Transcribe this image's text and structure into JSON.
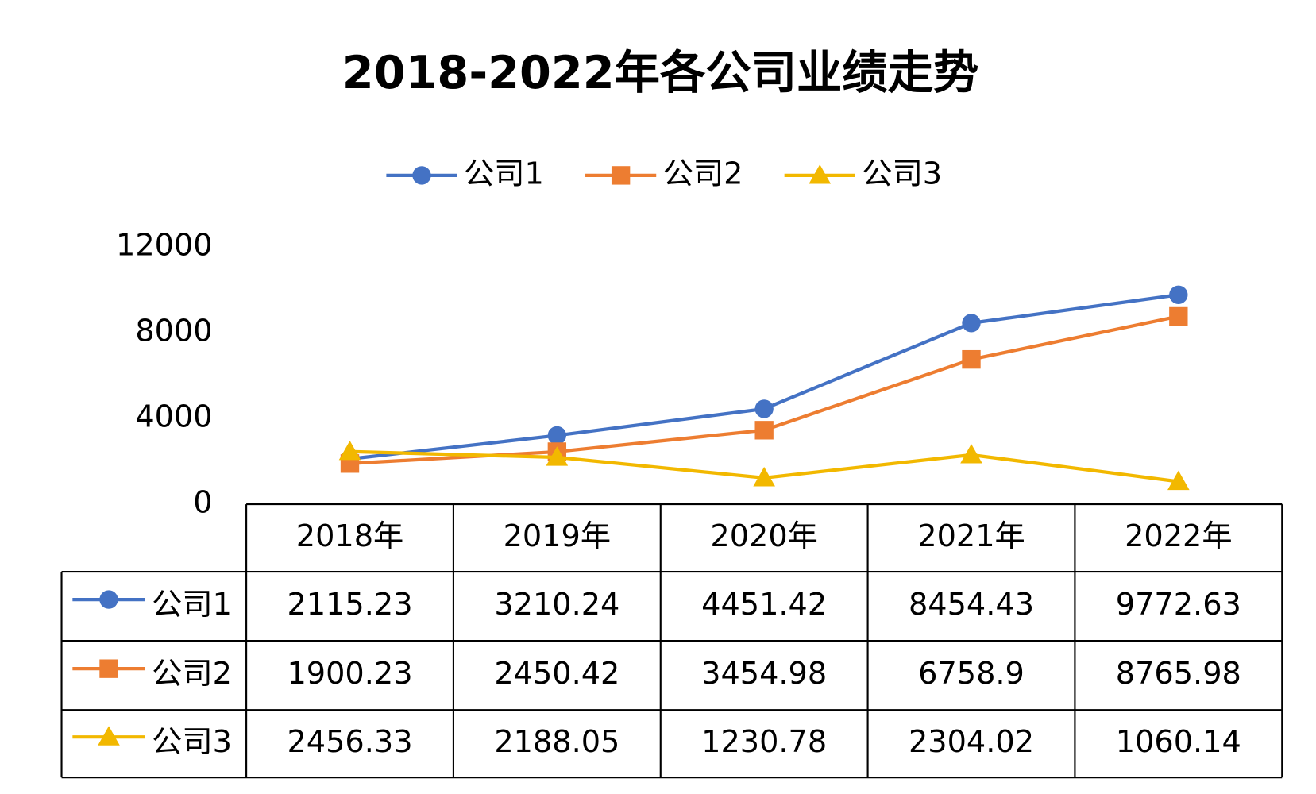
{
  "chart_data": {
    "type": "line",
    "title": "2018-2022年各公司业绩走势",
    "categories": [
      "2018年",
      "2019年",
      "2020年",
      "2021年",
      "2022年"
    ],
    "series": [
      {
        "name": "公司1",
        "color": "#4472c4",
        "marker": "circle",
        "values": [
          2115.23,
          3210.24,
          4451.42,
          8454.43,
          9772.63
        ]
      },
      {
        "name": "公司2",
        "color": "#ed7d31",
        "marker": "square",
        "values": [
          1900.23,
          2450.42,
          3454.98,
          6758.9,
          8765.98
        ]
      },
      {
        "name": "公司3",
        "color": "#f2b800",
        "marker": "triangle",
        "values": [
          2456.33,
          2188.05,
          1230.78,
          2304.02,
          1060.14
        ]
      }
    ],
    "ylim": [
      0,
      12000
    ],
    "yticks": [
      0,
      4000,
      8000,
      12000
    ],
    "grid": false,
    "legend": "top",
    "data_table": true
  }
}
